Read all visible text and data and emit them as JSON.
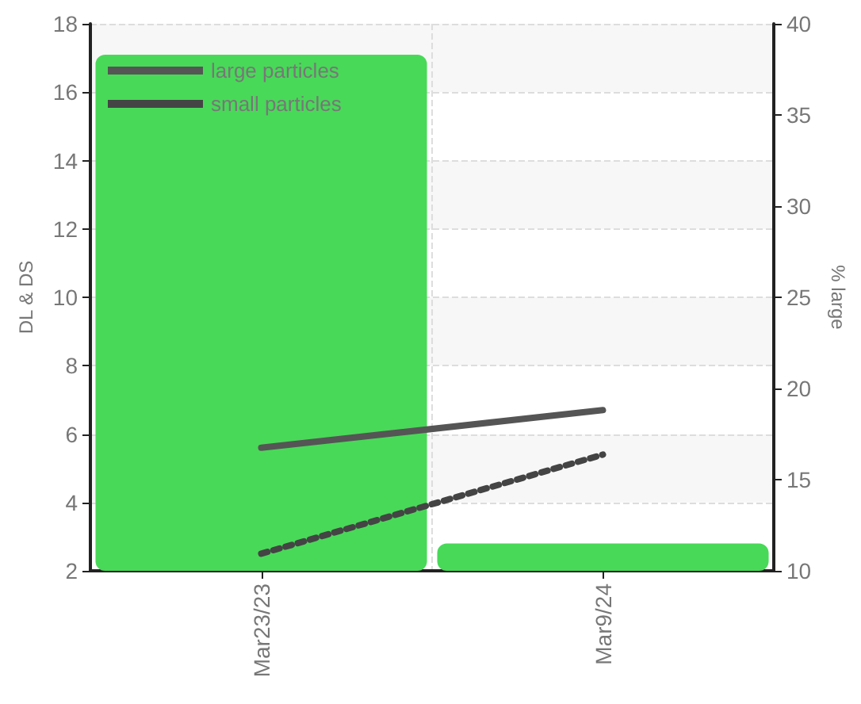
{
  "chart_data": {
    "type": "bar",
    "categories": [
      "Mar23/23",
      "Mar9/24"
    ],
    "ylabel": "DL & DS",
    "y2label": "% large",
    "ylim": [
      2,
      18
    ],
    "yticks": [
      2,
      4,
      6,
      8,
      10,
      12,
      14,
      16,
      18
    ],
    "y2lim": [
      10,
      40
    ],
    "y2ticks": [
      10,
      15,
      20,
      25,
      30,
      35,
      40
    ],
    "series": [
      {
        "axis": "y2",
        "color": "#48d958",
        "values": [
          38.3,
          11.5
        ]
      },
      {
        "type": "line",
        "name": "large particles",
        "color": "#555555",
        "line_style": "solid",
        "values": [
          5.6,
          6.7
        ]
      },
      {
        "type": "line",
        "name": "small particles",
        "color": "#444444",
        "line_style": "dotted",
        "values": [
          2.5,
          5.4
        ]
      }
    ],
    "grid": true,
    "legend": "top left",
    "marker": "none"
  }
}
